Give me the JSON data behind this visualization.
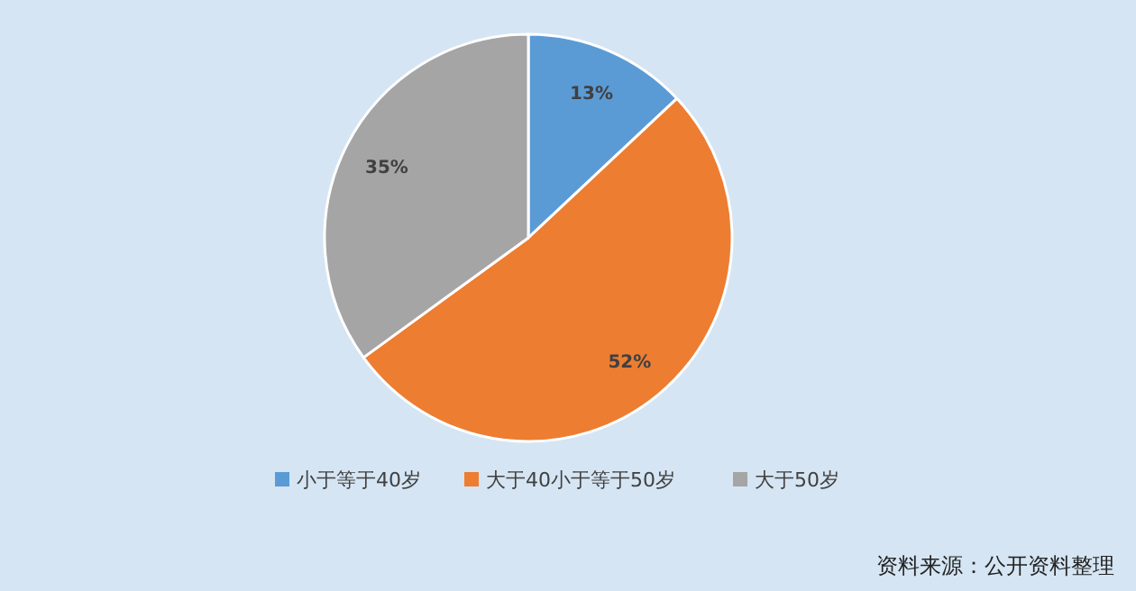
{
  "chart_data": {
    "type": "pie",
    "categories": [
      "小于等于40岁",
      "大于40小于等于50岁",
      "大于50岁"
    ],
    "values": [
      13,
      52,
      35
    ],
    "colors": [
      "#5b9bd5",
      "#ed7d31",
      "#a5a5a5"
    ],
    "value_labels": [
      "13%",
      "52%",
      "35%"
    ],
    "legend": "bottom",
    "annotations": [
      "资料来源：公开资料整理"
    ]
  }
}
